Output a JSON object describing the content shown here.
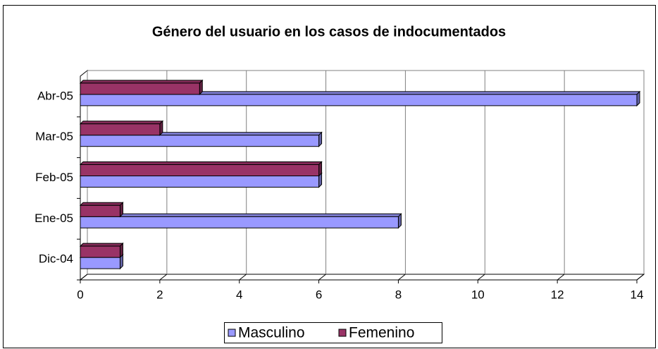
{
  "chart_data": {
    "type": "bar3d_horizontal",
    "title": "Género del usuario en los casos de indocumentados",
    "categories": [
      "Dic-04",
      "Ene-05",
      "Feb-05",
      "Mar-05",
      "Abr-05"
    ],
    "series": [
      {
        "name": "Masculino",
        "color": "#9999ff",
        "values": [
          1,
          8,
          6,
          6,
          14
        ]
      },
      {
        "name": "Femenino",
        "color": "#993366",
        "values": [
          1,
          1,
          6,
          2,
          3
        ]
      }
    ],
    "xlim": [
      0,
      14
    ],
    "xticks": [
      0,
      2,
      4,
      6,
      8,
      10,
      12,
      14
    ],
    "grid": true,
    "legend": "bottom"
  }
}
